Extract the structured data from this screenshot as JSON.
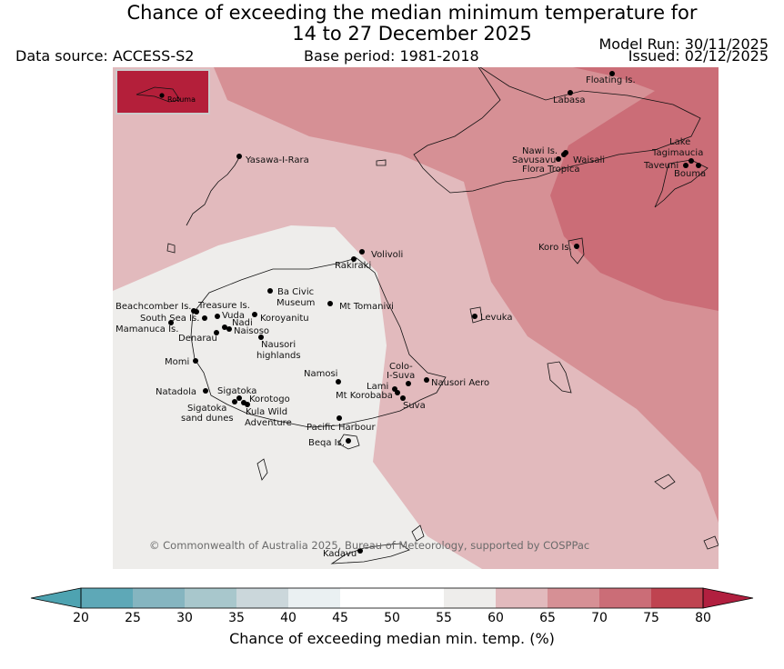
{
  "header": {
    "title_line1": "Chance of exceeding the median minimum temperature for",
    "title_line2": "14 to 27 December 2025",
    "data_source": "Data source: ACCESS-S2",
    "base_period": "Base period: 1981-2018",
    "model_run": "Model Run: 30/11/2025",
    "issued": "Issued: 02/12/2025"
  },
  "map": {
    "copyright": "© Commonwealth of Australia 2025, Bureau of Meteorology, supported by COSPPac",
    "inset_label": "Rotuma",
    "places": [
      "Floating Is.",
      "Labasa",
      "Nawi Is.",
      "Savusavu",
      "Waisali",
      "Flora Tropica",
      "Lake",
      "Tagimaucia",
      "Taveuni",
      "Bouma",
      "Yasawa-I-Rara",
      "Koro Is.",
      "Volivoli",
      "Rakiraki",
      "Ba Civic",
      "Museum",
      "Mt Tomanivi",
      "Beachcomber Is.",
      "Treasure Is.",
      "South Sea Is.",
      "Vuda",
      "Koroyanitu",
      "Nadi",
      "Naisoso",
      "Mamanuca Is.",
      "Denarau",
      "Levuka",
      "Nausori",
      "highlands",
      "Momi",
      "Namosi",
      "Colo-",
      "I-Suva",
      "Lami",
      "Nausori Aero",
      "Mt Korobaba",
      "Suva",
      "Natadola",
      "Sigatoka",
      "Korotogo",
      "Sigatoka",
      "sand dunes",
      "Kula Wild",
      "Adventure",
      "Pacific Harbour",
      "Beqa Is.",
      "Kadavu"
    ],
    "colors": {
      "band_45_55": "#eeedeb",
      "band_60_65": "#e2babd",
      "band_65_70": "#d69095",
      "band_70_75": "#cb6d77",
      "inset": "#b41f3a"
    }
  },
  "colorbar": {
    "ticks": [
      "20",
      "25",
      "30",
      "35",
      "40",
      "45",
      "50",
      "55",
      "60",
      "65",
      "70",
      "75",
      "80"
    ],
    "colors": [
      "#5ea8b7",
      "#85b5c0",
      "#a8c7cc",
      "#cbd7db",
      "#eaf0f2",
      "#ffffff",
      "#ffffff",
      "#eeedeb",
      "#e2babd",
      "#d69095",
      "#cb6d77",
      "#bf4350"
    ],
    "under_color": "#4ea3b1",
    "over_color": "#b11f3f",
    "label": "Chance of exceeding median min. temp. (%)"
  }
}
